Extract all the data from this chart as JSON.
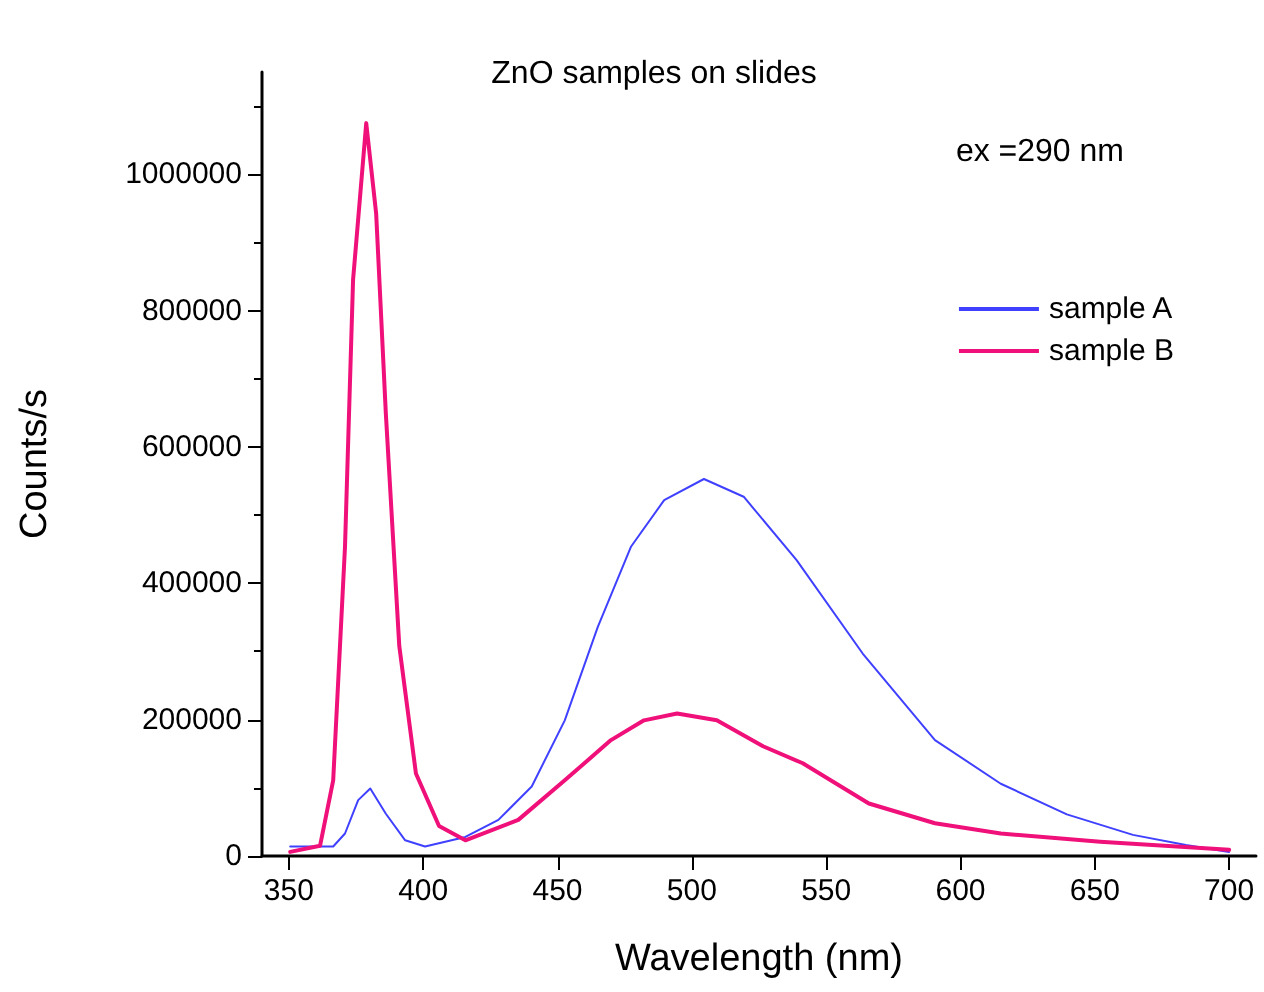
{
  "chart_data": {
    "type": "line",
    "title": "ZnO samples on slides",
    "xlabel": "Wavelength (nm)",
    "ylabel": "Counts/s",
    "annotations": [
      "ex =290 nm"
    ],
    "xlim": [
      340,
      710
    ],
    "xticks": [
      350,
      400,
      450,
      500,
      550,
      600,
      650,
      700
    ],
    "ylim": [
      0,
      1150000
    ],
    "yticks": [
      0,
      200000,
      400000,
      600000,
      800000,
      1000000
    ],
    "grid": false,
    "legend": "top right",
    "marker": "none",
    "line_style": "solid",
    "series": [
      {
        "name": "sample A",
        "color": "#4040ff",
        "x": [
          350.5,
          366.5,
          370.9,
          375.8,
          380.3,
          386.1,
          393.3,
          400.7,
          415.7,
          428,
          440.4,
          452.7,
          465,
          477.4,
          489.7,
          504.5,
          519.3,
          539,
          563.6,
          590.5,
          615,
          639.6,
          664.2,
          683.9,
          700
        ],
        "values": [
          14000,
          14000,
          33000,
          82000,
          99000,
          62000,
          23000,
          14000,
          28000,
          53000,
          102000,
          199000,
          336000,
          454000,
          522000,
          553000,
          527000,
          434000,
          297000,
          170000,
          106000,
          61000,
          31000,
          16000,
          6000
        ]
      },
      {
        "name": "sample B",
        "color": "#f0107a",
        "x": [
          350.5,
          361.6,
          366.5,
          370.9,
          373.9,
          378.8,
          382.5,
          386.1,
          391.1,
          397.3,
          405.9,
          415.7,
          435.4,
          452.7,
          469.9,
          482.2,
          494.5,
          509.3,
          526.5,
          541.3,
          565.9,
          590.5,
          615,
          652,
          700
        ],
        "values": [
          6000,
          15000,
          111000,
          454000,
          845000,
          1075000,
          942000,
          649000,
          308000,
          121000,
          44000,
          23000,
          53000,
          111000,
          170000,
          199000,
          209000,
          199000,
          161000,
          136000,
          77000,
          48000,
          33000,
          21000,
          9000
        ]
      }
    ]
  }
}
